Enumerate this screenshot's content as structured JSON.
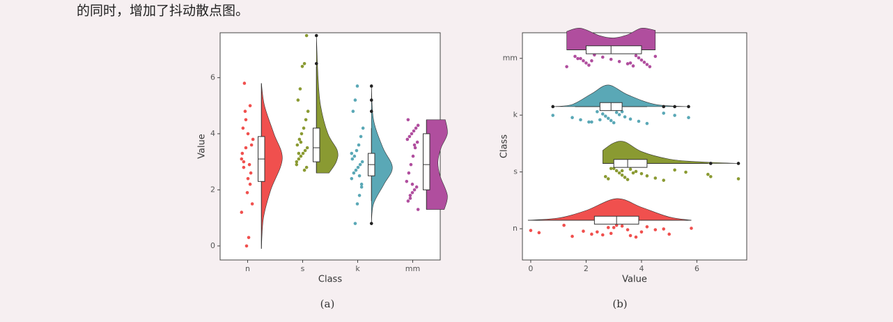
{
  "text": "的同时，增加了抖动散点图。",
  "captions": [
    "(a)",
    "(b)"
  ],
  "chart_data": [
    {
      "type": "raincloud",
      "orientation": "vertical",
      "x_label": "Class",
      "y_label": "Value",
      "categories": [
        "n",
        "s",
        "k",
        "mm"
      ],
      "ylim": [
        -0.5,
        7.6
      ],
      "yticks": [
        0,
        2,
        4,
        6
      ],
      "series": [
        {
          "name": "n",
          "color": "#f0504e",
          "box": [
            -0.1,
            2.3,
            3.1,
            3.9,
            5.8
          ],
          "outliers": [],
          "points": [
            3.1,
            2.8,
            3.5,
            4.0,
            2.2,
            1.5,
            3.3,
            5.8,
            0.0,
            0.3,
            2.6,
            3.8,
            4.2,
            4.8,
            1.9,
            2.9,
            3.6,
            1.2,
            3.0,
            4.5,
            2.4,
            5.0
          ],
          "density": {
            "at": [
              -0.1,
              1,
              2,
              3.1,
              4,
              5,
              5.8
            ],
            "height": [
              0,
              0.1,
              0.45,
              1,
              0.6,
              0.15,
              0
            ]
          }
        },
        {
          "name": "s",
          "color": "#8a9a32",
          "box": [
            2.6,
            3.0,
            3.5,
            4.2,
            6.4
          ],
          "outliers": [
            6.5,
            7.5
          ],
          "points": [
            2.7,
            2.8,
            3.0,
            3.1,
            3.2,
            3.3,
            3.4,
            3.5,
            3.6,
            3.8,
            4.0,
            4.2,
            4.5,
            4.8,
            5.2,
            5.6,
            6.4,
            6.5,
            7.5,
            2.9,
            3.3,
            3.7
          ],
          "density": {
            "at": [
              2.6,
              3,
              3.4,
              4,
              5,
              6,
              7.5
            ],
            "height": [
              0.6,
              0.95,
              1,
              0.55,
              0.2,
              0.08,
              0
            ]
          }
        },
        {
          "name": "k",
          "color": "#5aa8b6",
          "box": [
            1.6,
            2.5,
            2.9,
            3.3,
            4.2
          ],
          "outliers": [
            0.8,
            4.8,
            5.2,
            5.7
          ],
          "points": [
            0.8,
            1.5,
            1.8,
            2.1,
            2.4,
            2.6,
            2.7,
            2.8,
            2.9,
            3.0,
            3.1,
            3.2,
            3.4,
            3.6,
            3.9,
            4.2,
            4.8,
            5.2,
            5.7,
            2.5,
            2.2,
            3.3
          ],
          "density": {
            "at": [
              0.8,
              1.5,
              2.2,
              2.8,
              3.5,
              4.5,
              5.7
            ],
            "height": [
              0,
              0.1,
              0.6,
              1,
              0.55,
              0.1,
              0
            ]
          }
        },
        {
          "name": "mm",
          "color": "#b04e9e",
          "box": [
            1.3,
            2.0,
            2.9,
            4.0,
            4.5
          ],
          "outliers": [],
          "points": [
            1.3,
            1.6,
            1.8,
            1.9,
            2.0,
            2.1,
            2.3,
            2.6,
            2.9,
            3.2,
            3.5,
            3.7,
            3.8,
            3.9,
            4.0,
            4.1,
            4.2,
            4.3,
            4.5,
            1.7,
            2.2,
            3.6
          ],
          "density": {
            "at": [
              1.3,
              1.8,
              2.5,
              3,
              3.5,
              4,
              4.5
            ],
            "height": [
              0.85,
              1,
              0.65,
              0.55,
              0.7,
              1,
              0.9
            ]
          }
        }
      ]
    },
    {
      "type": "raincloud",
      "orientation": "horizontal",
      "x_label": "Value",
      "y_label": "Class",
      "categories": [
        "n",
        "s",
        "k",
        "mm"
      ],
      "xlim": [
        -0.3,
        7.8
      ],
      "xticks": [
        0,
        2,
        4,
        6
      ],
      "series": [
        {
          "name": "n",
          "color": "#f0504e",
          "box": [
            -0.1,
            2.3,
            3.1,
            3.9,
            5.8
          ],
          "outliers": [],
          "points": [
            3.1,
            2.8,
            3.5,
            4.0,
            2.2,
            1.5,
            3.3,
            5.8,
            0.0,
            0.3,
            2.6,
            3.8,
            4.2,
            4.8,
            1.9,
            2.9,
            3.6,
            1.2,
            3.0,
            4.5,
            2.4,
            5.0
          ],
          "density": {
            "at": [
              -0.1,
              1,
              2,
              3.1,
              4,
              5,
              5.8
            ],
            "height": [
              0,
              0.1,
              0.45,
              1,
              0.6,
              0.15,
              0
            ]
          }
        },
        {
          "name": "s",
          "color": "#8a9a32",
          "box": [
            2.6,
            3.0,
            3.5,
            4.2,
            6.4
          ],
          "outliers": [
            6.5,
            7.5
          ],
          "points": [
            2.7,
            2.8,
            3.0,
            3.1,
            3.2,
            3.3,
            3.4,
            3.5,
            3.6,
            3.8,
            4.0,
            4.2,
            4.5,
            4.8,
            5.2,
            5.6,
            6.4,
            6.5,
            7.5,
            2.9,
            3.3,
            3.7
          ],
          "density": {
            "at": [
              2.6,
              3,
              3.4,
              4,
              5,
              6,
              7.5
            ],
            "height": [
              0.6,
              0.95,
              1,
              0.55,
              0.2,
              0.08,
              0
            ]
          }
        },
        {
          "name": "k",
          "color": "#5aa8b6",
          "box": [
            1.6,
            2.5,
            2.9,
            3.3,
            4.2
          ],
          "outliers": [
            0.8,
            4.8,
            5.2,
            5.7
          ],
          "points": [
            0.8,
            1.5,
            1.8,
            2.1,
            2.4,
            2.6,
            2.7,
            2.8,
            2.9,
            3.0,
            3.1,
            3.2,
            3.4,
            3.6,
            3.9,
            4.2,
            4.8,
            5.2,
            5.7,
            2.5,
            2.2,
            3.3
          ],
          "density": {
            "at": [
              0.8,
              1.5,
              2.2,
              2.8,
              3.5,
              4.5,
              5.7
            ],
            "height": [
              0,
              0.1,
              0.6,
              1,
              0.55,
              0.1,
              0
            ]
          }
        },
        {
          "name": "mm",
          "color": "#b04e9e",
          "box": [
            1.3,
            2.0,
            2.9,
            4.0,
            4.5
          ],
          "outliers": [],
          "points": [
            1.3,
            1.6,
            1.8,
            1.9,
            2.0,
            2.1,
            2.3,
            2.6,
            2.9,
            3.2,
            3.5,
            3.7,
            3.8,
            3.9,
            4.0,
            4.1,
            4.2,
            4.3,
            4.5,
            1.7,
            2.2,
            3.6
          ],
          "density": {
            "at": [
              1.3,
              1.8,
              2.5,
              3,
              3.5,
              4,
              4.5
            ],
            "height": [
              0.85,
              1,
              0.65,
              0.55,
              0.7,
              1,
              0.9
            ]
          }
        }
      ]
    }
  ]
}
